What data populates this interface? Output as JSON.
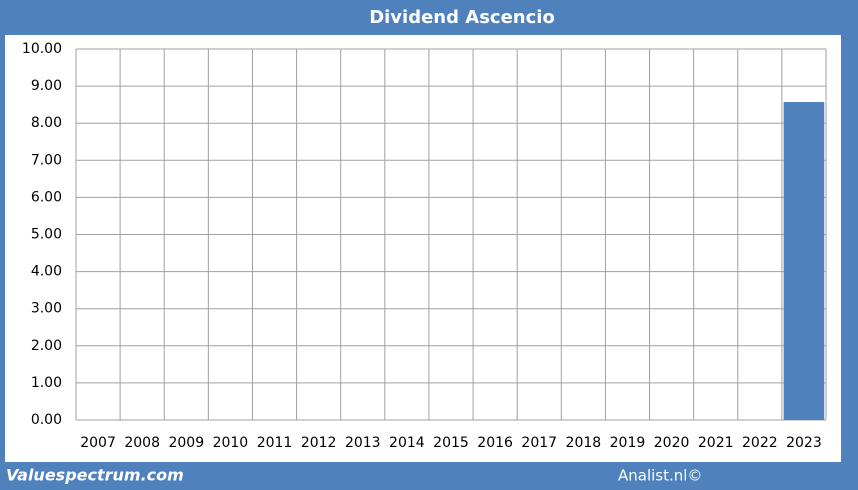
{
  "chart_data": {
    "type": "bar",
    "title": "Dividend Ascencio",
    "categories": [
      "2007",
      "2008",
      "2009",
      "2010",
      "2011",
      "2012",
      "2013",
      "2014",
      "2015",
      "2016",
      "2017",
      "2018",
      "2019",
      "2020",
      "2021",
      "2022",
      "2023"
    ],
    "values": [
      0,
      0,
      0,
      0,
      0,
      0,
      0,
      0,
      0,
      0,
      0,
      0,
      0,
      0,
      0,
      0,
      8.57
    ],
    "color": "#4f81bd",
    "ylim": [
      0,
      10
    ],
    "yticks": [
      {
        "value": 0,
        "label": "0.00"
      },
      {
        "value": 1,
        "label": "1.00"
      },
      {
        "value": 2,
        "label": "2.00"
      },
      {
        "value": 3,
        "label": "3.00"
      },
      {
        "value": 4,
        "label": "4.00"
      },
      {
        "value": 5,
        "label": "5.00"
      },
      {
        "value": 6,
        "label": "6.00"
      },
      {
        "value": 7,
        "label": "7.00"
      },
      {
        "value": 8,
        "label": "8.00"
      },
      {
        "value": 9,
        "label": "9.00"
      },
      {
        "value": 10,
        "label": "10.00"
      }
    ],
    "grid": true
  },
  "footer": {
    "left": "Valuespectrum.com",
    "right": "Analist.nl©"
  }
}
